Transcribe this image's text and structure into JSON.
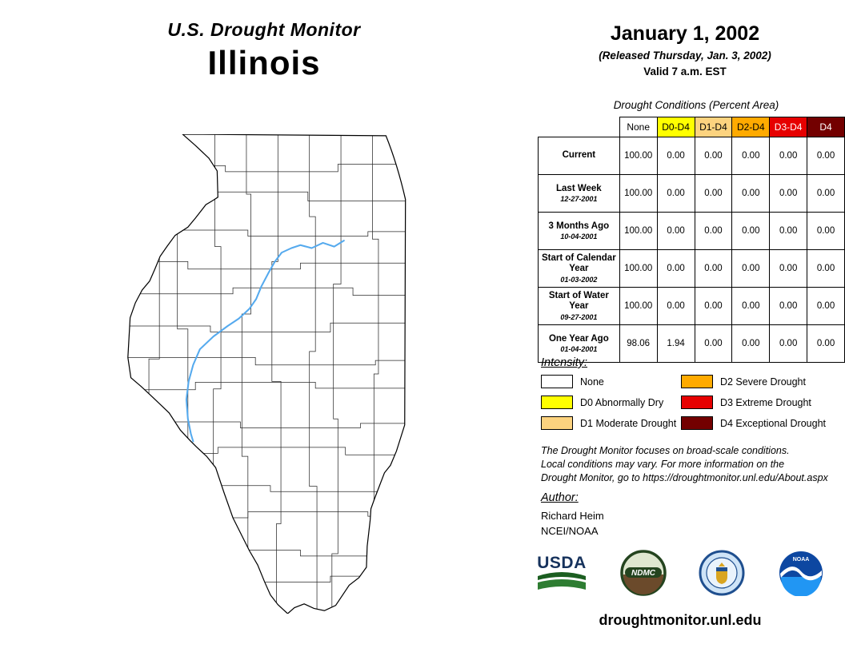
{
  "header": {
    "program": "U.S. Drought Monitor",
    "region": "Illinois",
    "date": "January 1, 2002",
    "released": "(Released Thursday, Jan. 3, 2002)",
    "valid": "Valid 7 a.m. EST"
  },
  "table": {
    "title": "Drought Conditions (Percent Area)",
    "columns": [
      {
        "label": "None",
        "bg": "#FFFFFF",
        "fg": "#000000"
      },
      {
        "label": "D0-D4",
        "bg": "#FFFF00",
        "fg": "#000000"
      },
      {
        "label": "D1-D4",
        "bg": "#FCD37F",
        "fg": "#000000"
      },
      {
        "label": "D2-D4",
        "bg": "#FFAA00",
        "fg": "#000000"
      },
      {
        "label": "D3-D4",
        "bg": "#E60000",
        "fg": "#FFFFFF"
      },
      {
        "label": "D4",
        "bg": "#730000",
        "fg": "#FFFFFF"
      }
    ],
    "rows": [
      {
        "label": "Current",
        "sublabel": "",
        "values": [
          "100.00",
          "0.00",
          "0.00",
          "0.00",
          "0.00",
          "0.00"
        ]
      },
      {
        "label": "Last Week",
        "sublabel": "12-27-2001",
        "values": [
          "100.00",
          "0.00",
          "0.00",
          "0.00",
          "0.00",
          "0.00"
        ]
      },
      {
        "label": "3 Months Ago",
        "sublabel": "10-04-2001",
        "values": [
          "100.00",
          "0.00",
          "0.00",
          "0.00",
          "0.00",
          "0.00"
        ]
      },
      {
        "label": "Start of Calendar Year",
        "sublabel": "01-03-2002",
        "values": [
          "100.00",
          "0.00",
          "0.00",
          "0.00",
          "0.00",
          "0.00"
        ]
      },
      {
        "label": "Start of Water Year",
        "sublabel": "09-27-2001",
        "values": [
          "100.00",
          "0.00",
          "0.00",
          "0.00",
          "0.00",
          "0.00"
        ]
      },
      {
        "label": "One Year Ago",
        "sublabel": "01-04-2001",
        "values": [
          "98.06",
          "1.94",
          "0.00",
          "0.00",
          "0.00",
          "0.00"
        ]
      }
    ]
  },
  "legend": {
    "title": "Intensity:",
    "items": [
      {
        "label": "None",
        "color": "#FFFFFF"
      },
      {
        "label": "D0 Abnormally Dry",
        "color": "#FFFF00"
      },
      {
        "label": "D1 Moderate Drought",
        "color": "#FCD37F"
      },
      {
        "label": "D2 Severe Drought",
        "color": "#FFAA00"
      },
      {
        "label": "D3 Extreme Drought",
        "color": "#E60000"
      },
      {
        "label": "D4 Exceptional Drought",
        "color": "#730000"
      }
    ]
  },
  "disclaimer": {
    "lines": [
      "The Drought Monitor focuses on broad-scale conditions.",
      "Local conditions may vary. For more information on the",
      "Drought Monitor, go to https://droughtmonitor.unl.edu/About.aspx"
    ]
  },
  "author": {
    "title": "Author:",
    "name": "Richard Heim",
    "org": "NCEI/NOAA"
  },
  "logos": {
    "usda": "USDA",
    "ndmc": "NDMC",
    "noaa": "NOAA"
  },
  "footer": {
    "url": "droughtmonitor.unl.edu"
  }
}
